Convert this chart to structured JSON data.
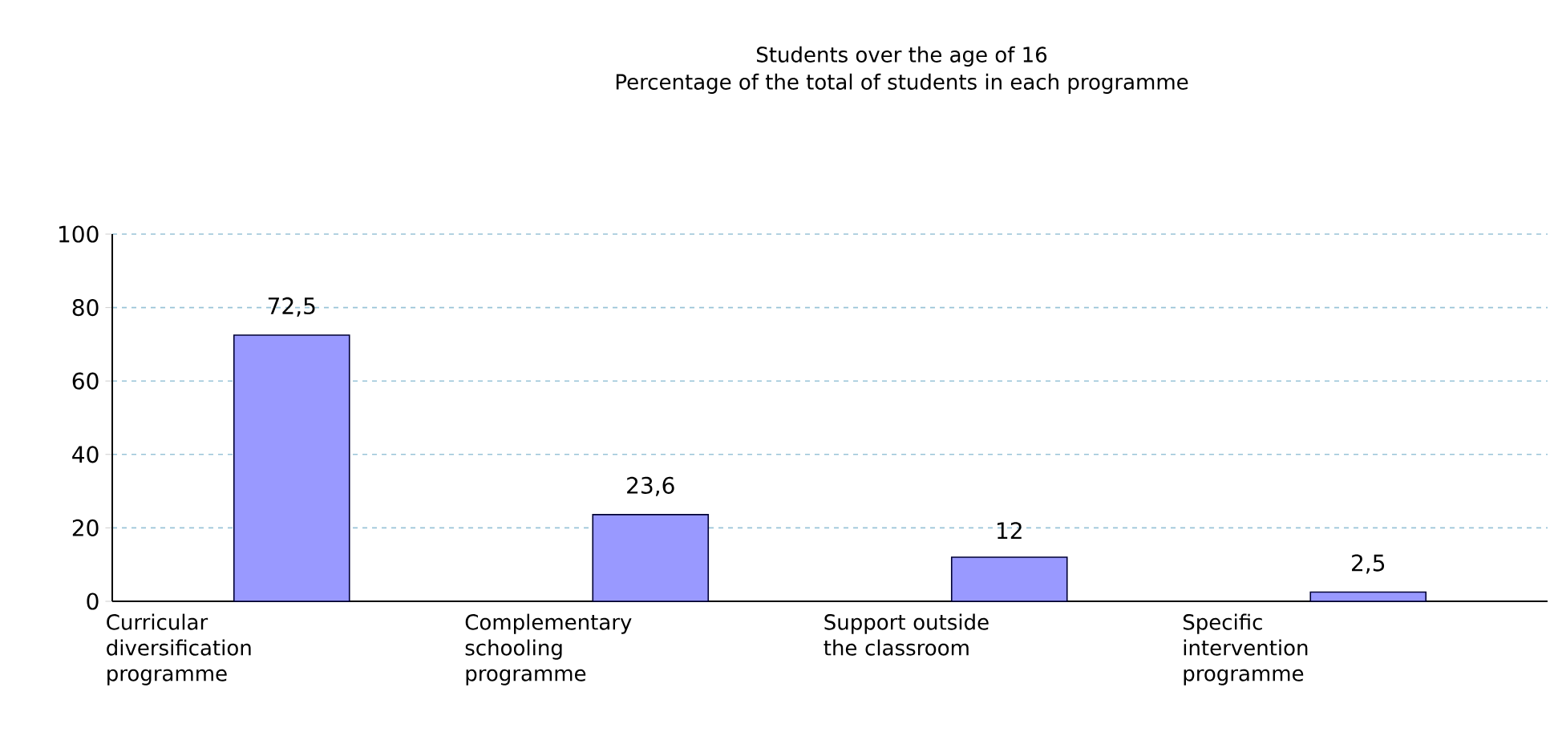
{
  "chart_data": {
    "type": "bar",
    "title": "Students over the age of 16",
    "subtitle": "Percentage of the total of students in each programme",
    "categories": [
      "Curricular diversification programme",
      "Complementary schooling programme",
      "Support outside the classroom",
      "Specific intervention programme"
    ],
    "values": [
      72.5,
      23.6,
      12,
      2.5
    ],
    "value_labels": [
      "72,5",
      "23,6",
      "12",
      "2,5"
    ],
    "color": "#9999ff",
    "ylim": [
      0,
      100
    ],
    "yticks": [
      0,
      20,
      40,
      60,
      80,
      100
    ],
    "grid": "y"
  }
}
